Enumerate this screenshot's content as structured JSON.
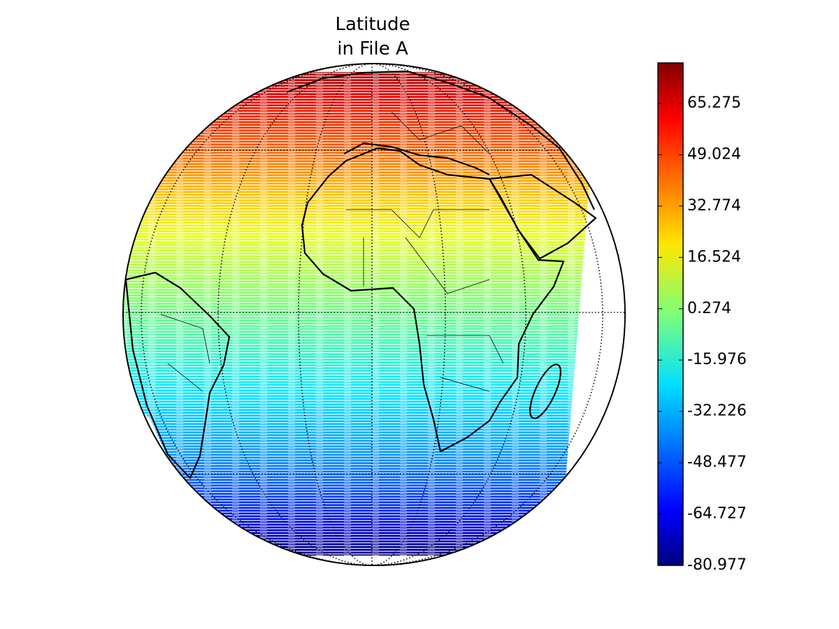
{
  "title": {
    "lines": [
      "Latitude",
      "in File A"
    ]
  },
  "colorbar": {
    "lim": [
      -80.977,
      78.1
    ],
    "ticks": [
      -80.977,
      -64.727,
      -48.477,
      -32.226,
      -15.976,
      0.274,
      16.524,
      32.774,
      49.024,
      65.275
    ]
  }
}
